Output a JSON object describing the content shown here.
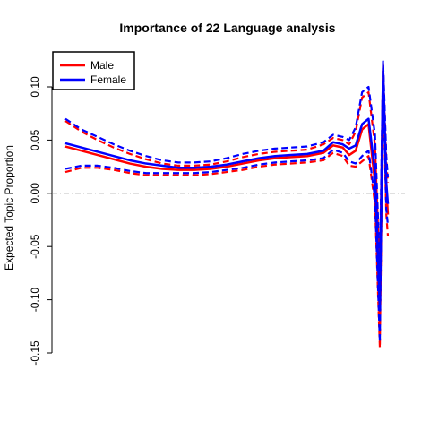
{
  "chart_data": {
    "type": "line",
    "title": "Importance of 22 Language analysis",
    "xlabel": "",
    "ylabel": "Expected Topic Proportion",
    "ylim": [
      -0.15,
      0.13
    ],
    "yticks": [
      0.1,
      0.05,
      0.0,
      -0.05,
      -0.1,
      -0.15
    ],
    "ytick_labels": [
      "0.10",
      "0.05",
      "0.00",
      "-0.05",
      "-0.10",
      "-0.15"
    ],
    "xlim": [
      0,
      1
    ],
    "legend": {
      "position": "top-left",
      "entries": [
        {
          "label": "Male",
          "color": "#ff0000"
        },
        {
          "label": "Female",
          "color": "#0000ff"
        }
      ]
    },
    "reference_line": {
      "y": 0,
      "style": "dash-dot",
      "color": "#808080"
    },
    "x": [
      0.0,
      0.05,
      0.1,
      0.15,
      0.2,
      0.25,
      0.3,
      0.35,
      0.4,
      0.45,
      0.5,
      0.55,
      0.6,
      0.65,
      0.7,
      0.75,
      0.8,
      0.83,
      0.86,
      0.88,
      0.9,
      0.92,
      0.94,
      0.96,
      0.975,
      0.985,
      0.995,
      1.0
    ],
    "series": [
      {
        "name": "Male",
        "color": "#ff0000",
        "mean": [
          0.044,
          0.04,
          0.036,
          0.032,
          0.028,
          0.025,
          0.023,
          0.022,
          0.022,
          0.023,
          0.025,
          0.028,
          0.031,
          0.033,
          0.034,
          0.035,
          0.038,
          0.045,
          0.043,
          0.036,
          0.04,
          0.06,
          0.065,
          0.01,
          -0.12,
          0.115,
          0.005,
          -0.02
        ],
        "upper": [
          0.068,
          0.058,
          0.05,
          0.043,
          0.037,
          0.032,
          0.028,
          0.026,
          0.026,
          0.027,
          0.03,
          0.034,
          0.037,
          0.039,
          0.04,
          0.041,
          0.046,
          0.052,
          0.05,
          0.046,
          0.058,
          0.09,
          0.095,
          0.045,
          -0.08,
          0.122,
          0.03,
          0.01
        ],
        "lower": [
          0.02,
          0.024,
          0.024,
          0.022,
          0.019,
          0.017,
          0.017,
          0.017,
          0.017,
          0.018,
          0.02,
          0.022,
          0.025,
          0.027,
          0.028,
          0.029,
          0.031,
          0.038,
          0.035,
          0.026,
          0.025,
          0.03,
          0.035,
          -0.01,
          -0.145,
          0.1,
          -0.02,
          -0.04
        ]
      },
      {
        "name": "Female",
        "color": "#0000ff",
        "mean": [
          0.047,
          0.043,
          0.039,
          0.035,
          0.031,
          0.028,
          0.026,
          0.024,
          0.024,
          0.025,
          0.027,
          0.03,
          0.033,
          0.035,
          0.036,
          0.037,
          0.04,
          0.048,
          0.046,
          0.042,
          0.045,
          0.065,
          0.07,
          0.02,
          -0.11,
          0.118,
          0.01,
          -0.01
        ],
        "upper": [
          0.07,
          0.06,
          0.053,
          0.046,
          0.04,
          0.035,
          0.031,
          0.029,
          0.029,
          0.03,
          0.033,
          0.037,
          0.04,
          0.042,
          0.043,
          0.044,
          0.048,
          0.055,
          0.053,
          0.05,
          0.062,
          0.095,
          0.1,
          0.055,
          -0.07,
          0.124,
          0.035,
          0.015
        ],
        "lower": [
          0.023,
          0.026,
          0.026,
          0.024,
          0.021,
          0.019,
          0.019,
          0.019,
          0.019,
          0.02,
          0.022,
          0.024,
          0.027,
          0.029,
          0.03,
          0.031,
          0.033,
          0.041,
          0.038,
          0.03,
          0.028,
          0.035,
          0.04,
          -0.005,
          -0.14,
          0.105,
          -0.015,
          -0.03
        ]
      }
    ]
  }
}
